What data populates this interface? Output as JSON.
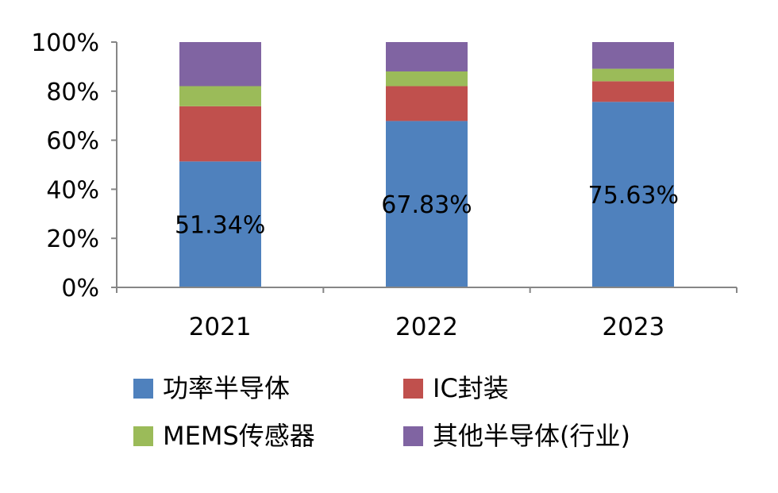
{
  "chart_data": {
    "type": "bar",
    "stacked": true,
    "percent_stacked": true,
    "categories": [
      "2021",
      "2022",
      "2023"
    ],
    "series": [
      {
        "name": "功率半导体",
        "color": "#4F81BD",
        "values": [
          51.34,
          67.83,
          75.63
        ],
        "data_labels": [
          "51.34%",
          "67.83%",
          "75.63%"
        ]
      },
      {
        "name": "IC封装",
        "color": "#C0504D",
        "values": [
          22.5,
          14.2,
          8.4
        ]
      },
      {
        "name": "MEMS传感器",
        "color": "#9BBB59",
        "values": [
          8.2,
          6.0,
          5.1
        ]
      },
      {
        "name": "其他半导体(行业)",
        "color": "#8064A2",
        "values": [
          17.96,
          11.97,
          10.87
        ]
      }
    ],
    "y_ticks": [
      "0%",
      "20%",
      "40%",
      "60%",
      "80%",
      "100%"
    ],
    "ylim": [
      0,
      100
    ],
    "grid": false,
    "legend_position": "bottom",
    "xlabel": "",
    "ylabel": ""
  }
}
